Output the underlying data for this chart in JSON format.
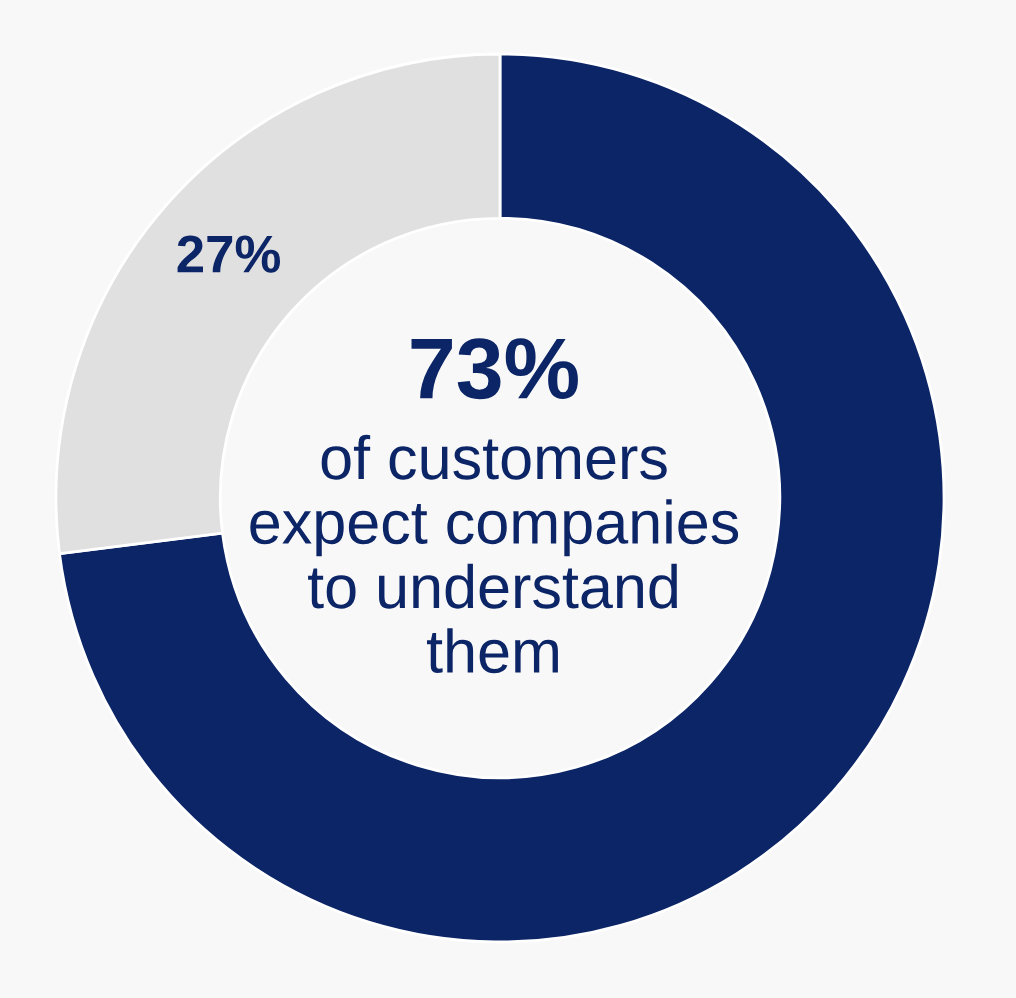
{
  "chart_data": {
    "type": "donut",
    "categories": [
      null,
      null
    ],
    "values": [
      73,
      27
    ],
    "colors": [
      "#0c2567",
      "#e0e0e0"
    ],
    "value_labels": [
      null,
      "27%"
    ],
    "annotations": [
      "73%",
      "of customers\nexpect companies\nto understand\nthem"
    ]
  }
}
